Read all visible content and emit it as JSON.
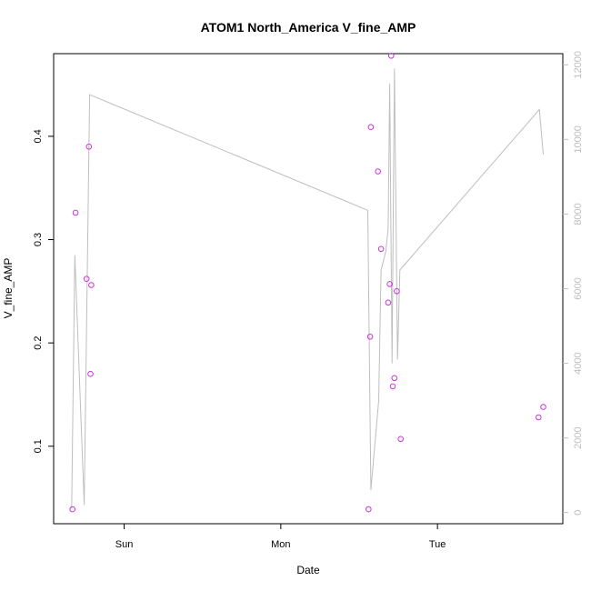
{
  "chart_data": {
    "type": "scatter",
    "title": "ATOM1 North_America V_fine_AMP",
    "xlabel": "Date",
    "ylabel": "V_fine_AMP",
    "x_unit": "days",
    "x_ticks": [
      {
        "value": 1.0,
        "label": "Sun"
      },
      {
        "value": 2.0,
        "label": "Mon"
      },
      {
        "value": 3.0,
        "label": "Tue"
      }
    ],
    "xlim": [
      0.55,
      3.8
    ],
    "ylim": [
      0.025,
      0.48
    ],
    "y_ticks": [
      0.1,
      0.2,
      0.3,
      0.4
    ],
    "y2lim": [
      -300,
      12300
    ],
    "y2_ticks": [
      0,
      2000,
      4000,
      6000,
      8000,
      10000,
      12000
    ],
    "grid": false,
    "series": [
      {
        "kind": "points",
        "color": "#cc33dd",
        "points": [
          [
            0.67,
            0.039
          ],
          [
            0.69,
            0.326
          ],
          [
            0.76,
            0.262
          ],
          [
            0.775,
            0.39
          ],
          [
            0.785,
            0.17
          ],
          [
            0.79,
            0.256
          ],
          [
            2.56,
            0.039
          ],
          [
            2.57,
            0.206
          ],
          [
            2.575,
            0.409
          ],
          [
            2.62,
            0.366
          ],
          [
            2.64,
            0.291
          ],
          [
            2.685,
            0.239
          ],
          [
            2.695,
            0.257
          ],
          [
            2.705,
            0.478
          ],
          [
            2.715,
            0.158
          ],
          [
            2.725,
            0.166
          ],
          [
            2.74,
            0.25
          ],
          [
            2.765,
            0.107
          ],
          [
            3.645,
            0.128
          ],
          [
            3.675,
            0.138
          ]
        ]
      },
      {
        "kind": "line",
        "axis": "right",
        "color": "#bebebe",
        "points": [
          [
            0.665,
            100
          ],
          [
            0.685,
            6900
          ],
          [
            0.745,
            200
          ],
          [
            0.78,
            11200
          ],
          [
            2.555,
            8100
          ],
          [
            2.575,
            600
          ],
          [
            2.625,
            3000
          ],
          [
            2.64,
            6500
          ],
          [
            2.67,
            7000
          ],
          [
            2.685,
            7600
          ],
          [
            2.695,
            11500
          ],
          [
            2.71,
            4000
          ],
          [
            2.725,
            11900
          ],
          [
            2.745,
            4100
          ],
          [
            2.76,
            6500
          ],
          [
            3.65,
            10800
          ],
          [
            3.675,
            9600
          ]
        ]
      }
    ]
  }
}
